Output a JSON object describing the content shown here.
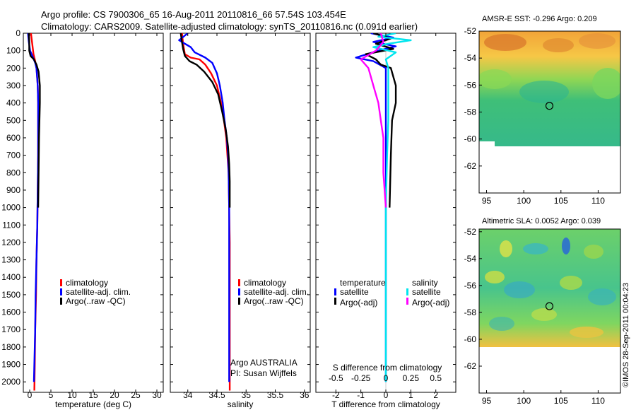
{
  "header": {
    "title_line1": "Argo profile: CS 7900306_65 16-Aug-2011 20110816_66 57.54S 103.454E",
    "title_line2": "Climatology: CARS2009. Satellite-adjusted climatology: synTS_20110816.nc (0.091d earlier)"
  },
  "footer": {
    "stamp": "©IMOS 28-Sep-2011 00:04:23"
  },
  "colors": {
    "climatology": "#ff0000",
    "satellite": "#0000ff",
    "argo": "#000000",
    "satellite_s": "#00e5ee",
    "argo_s": "#ff00ff"
  },
  "chart_data": [
    {
      "type": "line",
      "id": "temperature",
      "xlabel": "temperature (deg C)",
      "ylabel": "",
      "xlim": [
        -1.5,
        31.5
      ],
      "ylim": [
        2060,
        0
      ],
      "xticks": [
        0,
        5,
        10,
        15,
        20,
        25,
        30
      ],
      "xtick_labels": [
        "0",
        "5",
        "10",
        "15",
        "20",
        "25",
        "30"
      ],
      "yticks": [
        0,
        100,
        200,
        300,
        400,
        500,
        600,
        700,
        800,
        900,
        1000,
        1100,
        1200,
        1300,
        1400,
        1500,
        1600,
        1700,
        1800,
        1900,
        2000
      ],
      "ytick_labels": [
        "0",
        "100",
        "200",
        "300",
        "400",
        "500",
        "600",
        "700",
        "800",
        "900",
        "1000",
        "1100",
        "1200",
        "1300",
        "1400",
        "1500",
        "1600",
        "1700",
        "1800",
        "1900",
        "2000"
      ],
      "legend": [
        "climatology",
        "satellite-adj. clim.",
        "Argo(..raw -QC)"
      ],
      "series": [
        {
          "name": "climatology",
          "color": "#ff0000",
          "points": [
            [
              0.3,
              0
            ],
            [
              0.6,
              60
            ],
            [
              0.9,
              120
            ],
            [
              1.3,
              160
            ],
            [
              1.6,
              200
            ],
            [
              1.9,
              300
            ],
            [
              2.0,
              400
            ],
            [
              2.0,
              500
            ],
            [
              2.0,
              700
            ],
            [
              1.9,
              900
            ],
            [
              1.8,
              1100
            ],
            [
              1.6,
              1300
            ],
            [
              1.5,
              1500
            ],
            [
              1.3,
              1700
            ],
            [
              1.2,
              1900
            ],
            [
              1.1,
              2050
            ]
          ]
        },
        {
          "name": "satellite-adj. clim.",
          "color": "#0000ff",
          "points": [
            [
              -0.4,
              0
            ],
            [
              -0.2,
              50
            ],
            [
              0.1,
              100
            ],
            [
              0.8,
              140
            ],
            [
              1.3,
              170
            ],
            [
              1.6,
              200
            ],
            [
              1.9,
              300
            ],
            [
              2.0,
              400
            ],
            [
              2.0,
              500
            ],
            [
              2.0,
              700
            ],
            [
              1.9,
              900
            ],
            [
              1.8,
              1100
            ],
            [
              1.6,
              1300
            ],
            [
              1.4,
              1500
            ],
            [
              1.3,
              1700
            ],
            [
              1.1,
              1900
            ],
            [
              1.0,
              2000
            ]
          ]
        },
        {
          "name": "Argo(..raw -QC)",
          "color": "#000000",
          "points": [
            [
              -0.2,
              0
            ],
            [
              -0.1,
              50
            ],
            [
              -0.1,
              100
            ],
            [
              0.2,
              130
            ],
            [
              1.0,
              150
            ],
            [
              1.6,
              180
            ],
            [
              2.1,
              220
            ],
            [
              2.4,
              300
            ],
            [
              2.4,
              400
            ],
            [
              2.3,
              500
            ],
            [
              2.2,
              600
            ],
            [
              2.1,
              800
            ],
            [
              2.0,
              1000
            ]
          ]
        }
      ]
    },
    {
      "type": "line",
      "id": "salinity",
      "xlabel": "salinity",
      "xlim": [
        33.7,
        36.1
      ],
      "ylim": [
        2060,
        0
      ],
      "xticks": [
        34,
        34.5,
        35,
        35.5,
        36
      ],
      "xtick_labels": [
        "34",
        "34.5",
        "35",
        "35.5",
        "36"
      ],
      "legend": [
        "climatology",
        "satellite-adj. clim.",
        "Argo(..raw -QC)"
      ],
      "annotations": [
        "Argo AUSTRALIA",
        "PI: Susan Wijffels"
      ],
      "series": [
        {
          "name": "climatology",
          "color": "#ff0000",
          "points": [
            [
              33.9,
              0
            ],
            [
              33.92,
              60
            ],
            [
              33.95,
              120
            ],
            [
              34.05,
              140
            ],
            [
              34.2,
              150
            ],
            [
              34.3,
              180
            ],
            [
              34.4,
              230
            ],
            [
              34.5,
              300
            ],
            [
              34.57,
              400
            ],
            [
              34.62,
              500
            ],
            [
              34.66,
              600
            ],
            [
              34.68,
              700
            ],
            [
              34.7,
              800
            ],
            [
              34.71,
              1000
            ],
            [
              34.72,
              1200
            ],
            [
              34.72,
              1400
            ],
            [
              34.72,
              1600
            ],
            [
              34.72,
              1800
            ],
            [
              34.72,
              2050
            ]
          ]
        },
        {
          "name": "satellite-adj. clim.",
          "color": "#0000ff",
          "points": [
            [
              34.0,
              0
            ],
            [
              33.85,
              40
            ],
            [
              33.95,
              60
            ],
            [
              34.05,
              80
            ],
            [
              34.12,
              110
            ],
            [
              34.3,
              140
            ],
            [
              34.42,
              170
            ],
            [
              34.5,
              230
            ],
            [
              34.55,
              300
            ],
            [
              34.6,
              400
            ],
            [
              34.63,
              500
            ],
            [
              34.67,
              600
            ],
            [
              34.69,
              700
            ],
            [
              34.7,
              800
            ],
            [
              34.71,
              1000
            ],
            [
              34.71,
              1200
            ],
            [
              34.71,
              1400
            ],
            [
              34.71,
              1600
            ],
            [
              34.71,
              1800
            ],
            [
              34.71,
              2000
            ]
          ]
        },
        {
          "name": "Argo(..raw -QC)",
          "color": "#000000",
          "points": [
            [
              33.88,
              0
            ],
            [
              33.9,
              50
            ],
            [
              33.92,
              90
            ],
            [
              33.95,
              130
            ],
            [
              34.03,
              160
            ],
            [
              34.15,
              180
            ],
            [
              34.28,
              220
            ],
            [
              34.42,
              280
            ],
            [
              34.52,
              350
            ],
            [
              34.59,
              450
            ],
            [
              34.65,
              550
            ],
            [
              34.69,
              650
            ],
            [
              34.71,
              750
            ],
            [
              34.72,
              850
            ],
            [
              34.72,
              1000
            ]
          ]
        }
      ]
    },
    {
      "type": "line",
      "id": "difference",
      "xlabel": "T difference from climatology",
      "x2label": "S difference from climatology",
      "xlim": [
        -2.8,
        2.8
      ],
      "ylim": [
        2060,
        0
      ],
      "xticks": [
        -2,
        -1,
        0,
        1,
        2
      ],
      "xtick_labels": [
        "-2",
        "-1",
        "0",
        "1",
        "2"
      ],
      "x2ticks": [
        -2,
        -1,
        0,
        1,
        2
      ],
      "x2tick_labels": [
        "-0.5",
        "-0.25",
        "0",
        "0.25",
        "0.5"
      ],
      "legend_headers": [
        "temperature",
        "salinity"
      ],
      "legend": [
        "satellite",
        "Argo(-adj)",
        "satellite",
        "Argo(-adj)"
      ],
      "series": [
        {
          "name": "satellite",
          "group": "temperature",
          "color": "#0000ff",
          "points": [
            [
              -0.6,
              0
            ],
            [
              0.3,
              25
            ],
            [
              -0.5,
              50
            ],
            [
              0.4,
              75
            ],
            [
              -0.3,
              100
            ],
            [
              -1.2,
              140
            ],
            [
              -0.5,
              160
            ],
            [
              0,
              200
            ],
            [
              0,
              300
            ],
            [
              0,
              500
            ],
            [
              0,
              700
            ],
            [
              0,
              1000
            ],
            [
              0,
              1500
            ],
            [
              0,
              2000
            ]
          ]
        },
        {
          "name": "Argo(-adj)",
          "group": "temperature",
          "color": "#000000",
          "points": [
            [
              -0.5,
              0
            ],
            [
              0.2,
              30
            ],
            [
              -0.4,
              60
            ],
            [
              0.3,
              90
            ],
            [
              -0.8,
              120
            ],
            [
              -0.4,
              150
            ],
            [
              -0.2,
              180
            ],
            [
              0.2,
              200
            ],
            [
              0.4,
              300
            ],
            [
              0.4,
              400
            ],
            [
              0.25,
              500
            ],
            [
              0.2,
              700
            ],
            [
              0.15,
              1000
            ]
          ]
        },
        {
          "name": "satellite",
          "group": "salinity",
          "color": "#00e5ee",
          "points": [
            [
              0.4,
              0
            ],
            [
              -0.3,
              20
            ],
            [
              1.0,
              40
            ],
            [
              0.1,
              60
            ],
            [
              -0.5,
              80
            ],
            [
              0.4,
              110
            ],
            [
              0,
              150
            ],
            [
              0.1,
              200
            ],
            [
              0.1,
              300
            ],
            [
              0.1,
              500
            ],
            [
              0.05,
              700
            ],
            [
              0,
              1000
            ],
            [
              0,
              1500
            ],
            [
              0,
              2000
            ]
          ]
        },
        {
          "name": "Argo(-adj)",
          "group": "salinity",
          "color": "#ff00ff",
          "points": [
            [
              -0.2,
              0
            ],
            [
              -0.1,
              50
            ],
            [
              -0.4,
              100
            ],
            [
              -1.0,
              150
            ],
            [
              -0.7,
              200
            ],
            [
              -0.5,
              300
            ],
            [
              -0.3,
              400
            ],
            [
              -0.2,
              500
            ],
            [
              -0.1,
              600
            ],
            [
              -0.1,
              800
            ],
            [
              0,
              1000
            ]
          ]
        }
      ]
    },
    {
      "type": "heatmap",
      "id": "sst-map",
      "title": "AMSR-E SST: -0.296 Argo: 0.209",
      "xlim": [
        94,
        113
      ],
      "ylim": [
        -64,
        -52
      ],
      "xticks": [
        95,
        100,
        105,
        110
      ],
      "xtick_labels": [
        "95",
        "100",
        "105",
        "110"
      ],
      "yticks": [
        -52,
        -54,
        -56,
        -58,
        -60,
        -62
      ],
      "ytick_labels": [
        "-52",
        "-54",
        "-56",
        "-58",
        "-60",
        "-62"
      ],
      "data_extent_lat": [
        -60,
        -52
      ],
      "marker": {
        "lon": 103.45,
        "lat": -57.54
      }
    },
    {
      "type": "heatmap",
      "id": "sla-map",
      "title": "Altimetric SLA: 0.0052 Argo: 0.039",
      "xlim": [
        94,
        113
      ],
      "ylim": [
        -64,
        -51.8
      ],
      "xticks": [
        95,
        100,
        105,
        110
      ],
      "xtick_labels": [
        "95",
        "100",
        "105",
        "110"
      ],
      "yticks": [
        -52,
        -54,
        -56,
        -58,
        -60,
        -62
      ],
      "ytick_labels": [
        "-52",
        "-54",
        "-56",
        "-58",
        "-60",
        "-62"
      ],
      "data_extent_lat": [
        -60,
        -51.8
      ],
      "marker": {
        "lon": 103.45,
        "lat": -57.54
      }
    }
  ]
}
